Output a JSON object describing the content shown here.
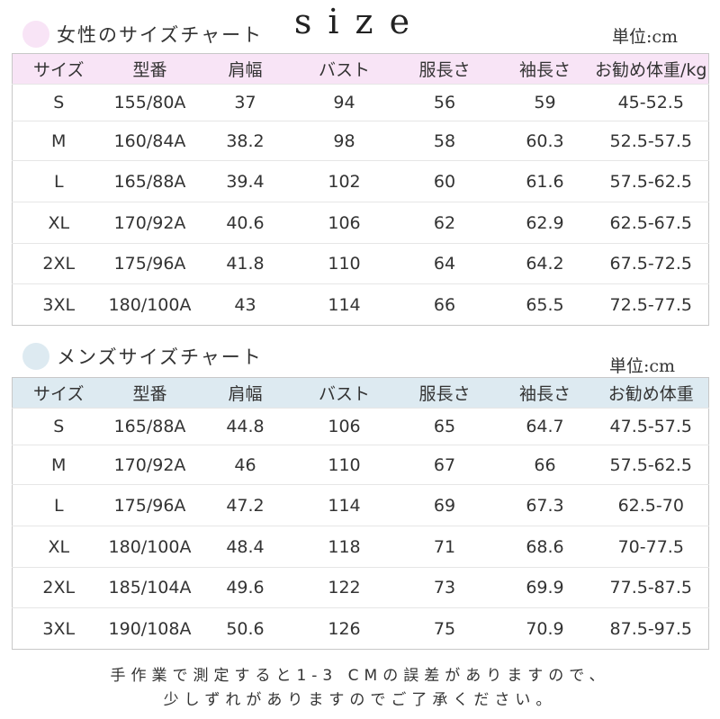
{
  "title": "size",
  "colors": {
    "women_accent": "#f8e4f6",
    "men_accent": "#ddeaf1"
  },
  "women": {
    "heading": "女性のサイズチャート",
    "unit": "単位:cm",
    "headers": [
      "サイズ",
      "型番",
      "肩幅",
      "バスト",
      "服長さ",
      "袖長さ",
      "お勧め体重/kg"
    ],
    "rows": [
      [
        "S",
        "155/80A",
        "37",
        "94",
        "56",
        "59",
        "45-52.5"
      ],
      [
        "M",
        "160/84A",
        "38.2",
        "98",
        "58",
        "60.3",
        "52.5-57.5"
      ],
      [
        "L",
        "165/88A",
        "39.4",
        "102",
        "60",
        "61.6",
        "57.5-62.5"
      ],
      [
        "XL",
        "170/92A",
        "40.6",
        "106",
        "62",
        "62.9",
        "62.5-67.5"
      ],
      [
        "2XL",
        "175/96A",
        "41.8",
        "110",
        "64",
        "64.2",
        "67.5-72.5"
      ],
      [
        "3XL",
        "180/100A",
        "43",
        "114",
        "66",
        "65.5",
        "72.5-77.5"
      ]
    ]
  },
  "men": {
    "heading": "メンズサイズチャート",
    "unit": "単位:cm",
    "headers": [
      "サイズ",
      "型番",
      "肩幅",
      "バスト",
      "服長さ",
      "袖長さ",
      "お勧め体重"
    ],
    "rows": [
      [
        "S",
        "165/88A",
        "44.8",
        "106",
        "65",
        "64.7",
        "47.5-57.5"
      ],
      [
        "M",
        "170/92A",
        "46",
        "110",
        "67",
        "66",
        "57.5-62.5"
      ],
      [
        "L",
        "175/96A",
        "47.2",
        "114",
        "69",
        "67.3",
        "62.5-70"
      ],
      [
        "XL",
        "180/100A",
        "48.4",
        "118",
        "71",
        "68.6",
        "70-77.5"
      ],
      [
        "2XL",
        "185/104A",
        "49.6",
        "122",
        "73",
        "69.9",
        "77.5-87.5"
      ],
      [
        "3XL",
        "190/108A",
        "50.6",
        "126",
        "75",
        "70.9",
        "87.5-97.5"
      ]
    ]
  },
  "footer": {
    "line1": "手作業で測定すると1-3 CMの誤差がありますので、",
    "line2": "少しずれがありますのでご了承ください。"
  }
}
